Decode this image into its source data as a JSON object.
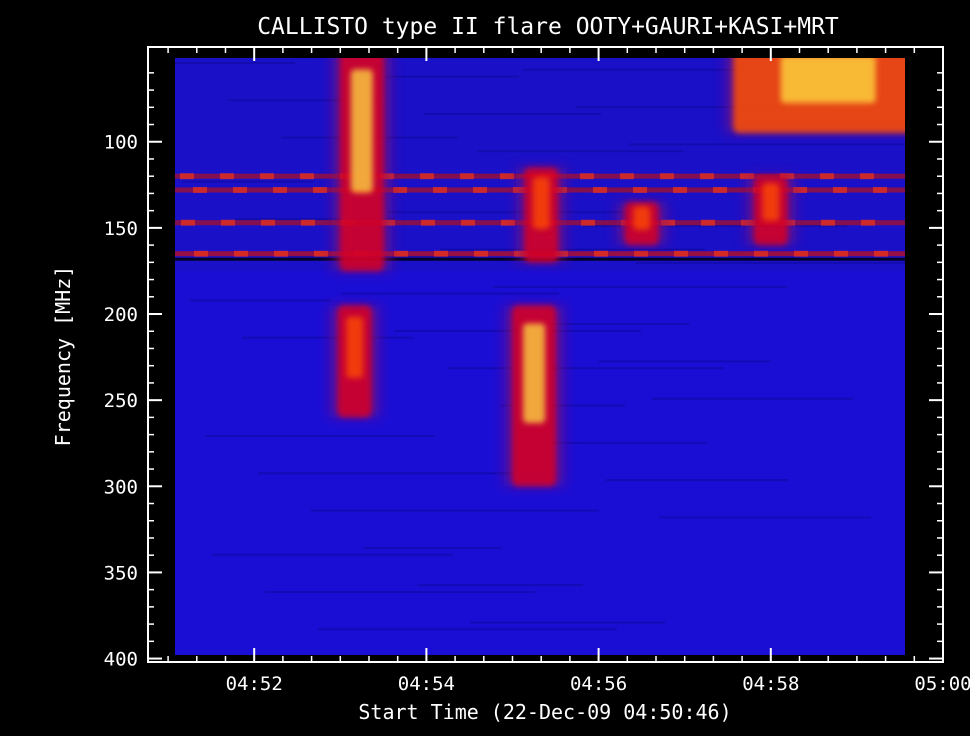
{
  "chart_data": {
    "type": "heatmap",
    "title": "CALLISTO type II flare OOTY+GAURI+KASI+MRT",
    "xlabel": "Start Time (22-Dec-09 04:50:46)",
    "ylabel": "Frequency [MHz]",
    "x_unit": "UT",
    "y_unit": "MHz",
    "xlim": [
      "04:50:46",
      "05:00:00"
    ],
    "ylim": [
      45,
      402
    ],
    "y_inverted": true,
    "x_ticks": [
      "04:52",
      "04:54",
      "04:56",
      "04:58",
      "05:00"
    ],
    "y_ticks": [
      100,
      150,
      200,
      250,
      300,
      350,
      400
    ],
    "colormap": [
      "#0000aa",
      "#2a10d8",
      "#d80020",
      "#ff5000",
      "#ffe040"
    ],
    "background_level": "blue",
    "features": [
      {
        "name": "burst",
        "time": "04:53:15",
        "freq_range": [
          45,
          175
        ],
        "intensity": "high"
      },
      {
        "name": "burst",
        "time": "04:53:10",
        "freq_range": [
          195,
          260
        ],
        "intensity": "medium"
      },
      {
        "name": "burst",
        "time": "04:55:15",
        "freq_range": [
          195,
          300
        ],
        "intensity": "high"
      },
      {
        "name": "burst",
        "time": "04:55:20",
        "freq_range": [
          115,
          170
        ],
        "intensity": "medium"
      },
      {
        "name": "burst",
        "time": "04:56:30",
        "freq_range": [
          135,
          160
        ],
        "intensity": "medium"
      },
      {
        "name": "burst",
        "time": "04:58:00",
        "freq_range": [
          120,
          160
        ],
        "intensity": "medium"
      },
      {
        "name": "burst",
        "time": "04:58:40",
        "freq_range": [
          45,
          95
        ],
        "intensity": "very high"
      },
      {
        "name": "rfi_band",
        "freq": 120
      },
      {
        "name": "rfi_band",
        "freq": 128
      },
      {
        "name": "rfi_band",
        "freq": 147
      },
      {
        "name": "rfi_band",
        "freq": 165
      }
    ]
  }
}
